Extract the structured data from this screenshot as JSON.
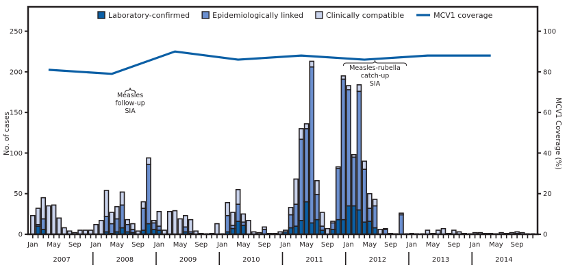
{
  "chart_data": {
    "type": "bar",
    "subtype": "stacked-bar-with-line",
    "title": "",
    "ylabel": "No. of cases",
    "y2label": "MCV1 Coverage (%)",
    "ylim": [
      0,
      280
    ],
    "y2lim": [
      0,
      112
    ],
    "yticks": [
      0,
      50,
      100,
      150,
      200,
      250
    ],
    "y2ticks": [
      0,
      20,
      40,
      60,
      80,
      100
    ],
    "grid": false,
    "legend_position": "top",
    "colors": {
      "lab": "#0b5fa5",
      "epi": "#6b8fcf",
      "clin": "#c9d3ec",
      "line": "#0b5fa5",
      "outline": "#231f20"
    },
    "legend": [
      {
        "key": "lab",
        "label": "Laboratory-confirmed",
        "kind": "box"
      },
      {
        "key": "epi",
        "label": "Epidemiologically linked",
        "kind": "box"
      },
      {
        "key": "clin",
        "label": "Clinically compatible",
        "kind": "box"
      },
      {
        "key": "line",
        "label": "MCV1 coverage",
        "kind": "line"
      }
    ],
    "years": [
      "2007",
      "2008",
      "2009",
      "2010",
      "2011",
      "2012",
      "2013",
      "2014"
    ],
    "month_tick_labels": [
      "Jan",
      "May",
      "Sep"
    ],
    "series": [
      {
        "name": "Laboratory-confirmed",
        "key": "lab",
        "values": [
          0,
          10,
          6,
          0,
          0,
          0,
          0,
          0,
          0,
          0,
          0,
          0,
          0,
          0,
          3,
          1,
          3,
          8,
          3,
          2,
          0,
          5,
          13,
          6,
          5,
          0,
          0,
          0,
          0,
          3,
          1,
          0,
          0,
          0,
          0,
          0,
          0,
          3,
          7,
          16,
          11,
          0,
          0,
          0,
          0,
          0,
          0,
          0,
          3,
          8,
          10,
          17,
          40,
          14,
          18,
          5,
          0,
          6,
          18,
          18,
          35,
          35,
          30,
          15,
          16,
          8,
          0,
          0,
          0,
          0,
          0,
          0,
          0,
          0,
          0,
          0,
          0,
          0,
          0,
          0,
          0,
          0,
          0,
          0,
          0,
          0,
          0,
          0,
          0,
          0,
          0,
          0,
          1,
          0,
          0,
          0
        ]
      },
      {
        "name": "Epidemiologically linked",
        "key": "epi",
        "values": [
          0,
          2,
          13,
          0,
          0,
          0,
          0,
          0,
          0,
          0,
          0,
          0,
          0,
          0,
          19,
          12,
          16,
          28,
          9,
          4,
          0,
          27,
          73,
          8,
          5,
          0,
          0,
          0,
          0,
          6,
          2,
          0,
          0,
          0,
          0,
          0,
          0,
          20,
          4,
          21,
          4,
          0,
          0,
          0,
          6,
          0,
          0,
          0,
          0,
          16,
          27,
          100,
          90,
          192,
          31,
          5,
          0,
          8,
          63,
          173,
          143,
          60,
          146,
          65,
          16,
          27,
          0,
          6,
          0,
          0,
          24,
          0,
          0,
          0,
          0,
          0,
          0,
          0,
          0,
          0,
          0,
          0,
          0,
          0,
          0,
          0,
          0,
          0,
          0,
          0,
          0,
          0,
          0,
          0,
          0,
          0
        ]
      },
      {
        "name": "Clinically compatible",
        "key": "clin",
        "values": [
          23,
          20,
          26,
          35,
          36,
          20,
          8,
          4,
          2,
          5,
          5,
          5,
          12,
          17,
          32,
          14,
          15,
          16,
          6,
          7,
          4,
          8,
          8,
          3,
          18,
          5,
          28,
          29,
          19,
          14,
          15,
          4,
          1,
          0,
          1,
          13,
          0,
          16,
          16,
          18,
          10,
          17,
          3,
          2,
          3,
          1,
          1,
          3,
          2,
          9,
          31,
          13,
          6,
          7,
          17,
          17,
          7,
          2,
          2,
          4,
          5,
          3,
          8,
          10,
          18,
          8,
          6,
          1,
          1,
          0,
          2,
          0,
          1,
          0,
          0,
          5,
          1,
          5,
          7,
          1,
          5,
          3,
          1,
          0,
          2,
          2,
          1,
          1,
          0,
          2,
          1,
          2,
          2,
          2,
          0,
          0
        ]
      }
    ],
    "coverage_line": {
      "name": "MCV1 coverage",
      "points": [
        {
          "month_index": 3,
          "value": 81
        },
        {
          "month_index": 15,
          "value": 79
        },
        {
          "month_index": 27,
          "value": 90
        },
        {
          "month_index": 39,
          "value": 86
        },
        {
          "month_index": 51,
          "value": 88
        },
        {
          "month_index": 63,
          "value": 86
        },
        {
          "month_index": 75,
          "value": 88
        },
        {
          "month_index": 87,
          "value": 88
        }
      ]
    },
    "annotations": [
      {
        "text_lines": [
          "Measles",
          "follow-up",
          "SIA"
        ],
        "brace_month_index": 18.5,
        "brace_from": 17.5,
        "brace_to": 19.5,
        "label_y": 158
      },
      {
        "text_lines": [
          "Measles-rubella",
          "catch-up",
          "SIA"
        ],
        "brace_month_index": 65,
        "brace_from": 59,
        "brace_to": 71,
        "label_y": 118
      }
    ]
  }
}
